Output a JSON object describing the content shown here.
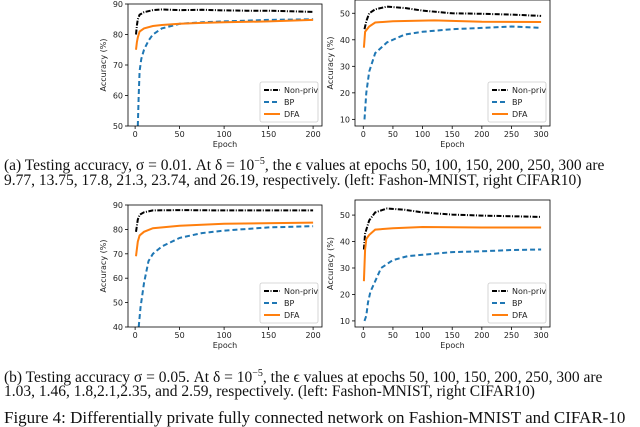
{
  "colors": {
    "nonpriv": "#000000",
    "bp": "#1f77b4",
    "dfa": "#ff7f0e"
  },
  "chart_data": [
    {
      "type": "line",
      "panel": "a-left",
      "xlabel": "Epoch",
      "ylabel": "Accuracy (%)",
      "xlim": [
        -8,
        210
      ],
      "ylim": [
        50,
        90
      ],
      "xticks": [
        0,
        50,
        100,
        150,
        200
      ],
      "yticks": [
        50,
        60,
        70,
        80,
        90
      ],
      "legend": "lower-right",
      "grid": false,
      "series": [
        {
          "name": "Non-priv",
          "style": "dashdot",
          "x": [
            1,
            2,
            3,
            5,
            10,
            20,
            30,
            50,
            75,
            100,
            125,
            150,
            175,
            200
          ],
          "y": [
            80,
            83,
            85,
            86.5,
            87.3,
            88,
            88.2,
            88,
            88.1,
            87.9,
            87.8,
            87.8,
            87.6,
            87.4
          ]
        },
        {
          "name": "BP",
          "style": "dashed",
          "x": [
            3,
            4,
            5,
            7,
            10,
            15,
            20,
            30,
            50,
            75,
            100,
            150,
            200
          ],
          "y": [
            50,
            60,
            68,
            72,
            75,
            78,
            80,
            82,
            83.5,
            84,
            84.3,
            84.8,
            85
          ]
        },
        {
          "name": "DFA",
          "style": "solid",
          "x": [
            1,
            2,
            3,
            5,
            10,
            20,
            30,
            50,
            75,
            100,
            150,
            200
          ],
          "y": [
            75,
            77.5,
            79,
            81,
            82,
            82.8,
            83.1,
            83.5,
            83.8,
            84,
            84.3,
            84.8
          ]
        }
      ]
    },
    {
      "type": "line",
      "panel": "a-right",
      "xlabel": "Epoch",
      "ylabel": "Accuracy (%)",
      "xlim": [
        -14,
        315
      ],
      "ylim": [
        7.5,
        55
      ],
      "xticks": [
        0,
        50,
        100,
        150,
        200,
        250,
        300
      ],
      "yticks": [
        10,
        20,
        30,
        40,
        50
      ],
      "legend": "lower-right",
      "grid": false,
      "series": [
        {
          "name": "Non-priv",
          "style": "dashdot",
          "x": [
            2,
            5,
            10,
            20,
            40,
            70,
            100,
            150,
            200,
            250,
            300
          ],
          "y": [
            44,
            47,
            50,
            51.5,
            52.5,
            52,
            51,
            50,
            49.8,
            49.5,
            49
          ]
        },
        {
          "name": "BP",
          "style": "dashed",
          "x": [
            2,
            5,
            10,
            20,
            40,
            70,
            100,
            150,
            200,
            250,
            300
          ],
          "y": [
            10,
            20,
            28,
            35,
            39,
            42,
            43,
            44,
            44.5,
            45,
            44.5
          ]
        },
        {
          "name": "DFA",
          "style": "solid",
          "x": [
            1,
            3,
            10,
            20,
            50,
            120,
            200,
            300
          ],
          "y": [
            37,
            43,
            45,
            46.5,
            47,
            47.3,
            46.8,
            46.7
          ]
        }
      ]
    },
    {
      "type": "line",
      "panel": "b-left",
      "xlabel": "Epoch",
      "ylabel": "Accuracy (%)",
      "xlim": [
        -8,
        210
      ],
      "ylim": [
        40,
        90
      ],
      "xticks": [
        0,
        50,
        100,
        150,
        200
      ],
      "yticks": [
        40,
        50,
        60,
        70,
        80,
        90
      ],
      "legend": "lower-right",
      "grid": false,
      "series": [
        {
          "name": "Non-priv",
          "style": "dashdot",
          "x": [
            1,
            3,
            5,
            10,
            20,
            50,
            100,
            150,
            200
          ],
          "y": [
            79,
            84,
            86,
            87,
            87.8,
            87.9,
            87.8,
            87.8,
            87.8
          ]
        },
        {
          "name": "BP",
          "style": "dashed",
          "x": [
            4,
            6,
            10,
            15,
            20,
            30,
            50,
            75,
            100,
            150,
            200
          ],
          "y": [
            40,
            48,
            58,
            67,
            70,
            73,
            76.5,
            78.5,
            79.5,
            80.8,
            81.3
          ]
        },
        {
          "name": "DFA",
          "style": "solid",
          "x": [
            1,
            3,
            5,
            10,
            20,
            50,
            100,
            200
          ],
          "y": [
            69,
            75,
            77.5,
            79,
            80.5,
            81.5,
            82.3,
            82.8
          ]
        }
      ]
    },
    {
      "type": "line",
      "panel": "b-right",
      "xlabel": "Epoch",
      "ylabel": "Accuracy (%)",
      "xlim": [
        -14,
        315
      ],
      "ylim": [
        7.7,
        55.7
      ],
      "xticks": [
        0,
        50,
        100,
        150,
        200,
        250,
        300
      ],
      "yticks": [
        10,
        20,
        30,
        40,
        50
      ],
      "legend": "lower-right",
      "grid": false,
      "series": [
        {
          "name": "Non-priv",
          "style": "dashdot",
          "x": [
            1,
            3,
            10,
            20,
            40,
            70,
            100,
            150,
            200,
            300
          ],
          "y": [
            37,
            43,
            48,
            51,
            52.5,
            52,
            51,
            50.2,
            49.8,
            49.3
          ]
        },
        {
          "name": "BP",
          "style": "dashed",
          "x": [
            2,
            5,
            8,
            12,
            20,
            30,
            50,
            75,
            100,
            150,
            200,
            250,
            300
          ],
          "y": [
            10,
            12,
            17,
            21,
            25,
            30,
            33,
            34.5,
            35,
            36,
            36.3,
            36.8,
            37
          ]
        },
        {
          "name": "DFA",
          "style": "solid",
          "x": [
            1,
            3,
            5,
            10,
            20,
            50,
            100,
            200,
            300
          ],
          "y": [
            25,
            37,
            41,
            42.5,
            44.5,
            45,
            45.5,
            45.3,
            45.3
          ]
        }
      ]
    }
  ],
  "captions": {
    "a": {
      "line1_pre": "(a) Testing accuracy, σ = 0.01. At δ = 10",
      "line1_sup": "−5",
      "line1_post": ", the ϵ values at epochs 50, 100, 150, 200, 250, 300 are",
      "line2": "9.77, 13.75, 17.8, 21.3, 23.74, and 26.19, respectively. (left: Fashon-MNIST, right CIFAR10)"
    },
    "b": {
      "line1_pre": "(b) Testing accuracy σ = 0.05. At δ = 10",
      "line1_sup": "−5",
      "line1_post": ", the ϵ values at epochs 50, 100, 150, 200, 250, 300 are",
      "line2": "1.03, 1.46, 1.8,2.1,2.35, and 2.59, respectively. (left: Fashon-MNIST, right CIFAR10)"
    },
    "figure": "Figure 4: Differentially private fully connected network on Fashion-MNIST and CIFAR-10"
  }
}
